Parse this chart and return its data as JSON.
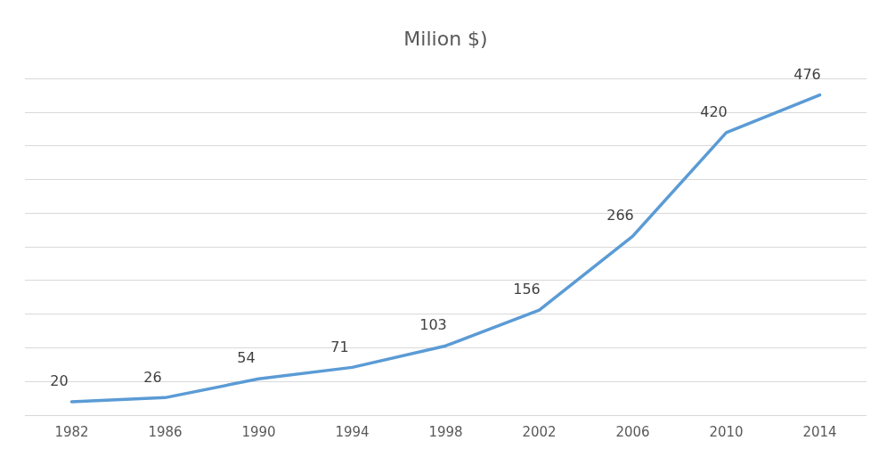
{
  "chart_data": {
    "type": "line",
    "title": "Milion $)",
    "categories": [
      "1982",
      "1986",
      "1990",
      "1994",
      "1998",
      "2002",
      "2006",
      "2010",
      "2014"
    ],
    "series": [
      {
        "color": "#5b9bd5",
        "values": [
          20,
          26,
          54,
          71,
          103,
          156,
          266,
          420,
          476
        ]
      }
    ],
    "ylim": [
      0,
      500
    ],
    "yticks": [
      {
        "value": 0,
        "label": null
      },
      {
        "value": 50,
        "label": null
      },
      {
        "value": 100,
        "label": null
      },
      {
        "value": 150,
        "label": null
      },
      {
        "value": 200,
        "label": null
      },
      {
        "value": 250,
        "label": null
      },
      {
        "value": 300,
        "label": null
      },
      {
        "value": 350,
        "label": null
      },
      {
        "value": 400,
        "label": null
      },
      {
        "value": 450,
        "label": null
      },
      {
        "value": 500,
        "label": null
      }
    ],
    "tick_labels": "x",
    "grid": "y",
    "legend": false,
    "marker": "none",
    "line_style": "solid",
    "data_labels": true
  }
}
